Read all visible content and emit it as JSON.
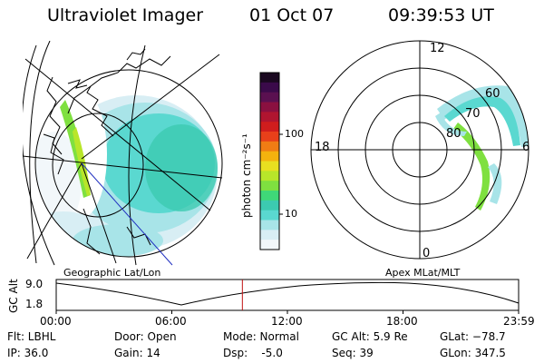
{
  "header": {
    "title": "Ultraviolet Imager",
    "date": "01 Oct 07",
    "time": "09:39:53 UT"
  },
  "colorbar": {
    "unit_label": "photon cm⁻²s⁻¹",
    "ticks": [
      "100",
      "10"
    ],
    "colors": [
      "#1a0820",
      "#3a0a4a",
      "#5a1050",
      "#8a1040",
      "#b01530",
      "#d01d1d",
      "#e8401a",
      "#f07c14",
      "#f4b20e",
      "#e8e020",
      "#b8e62a",
      "#7fe040",
      "#3fd878",
      "#3ccab0",
      "#5ad8d0",
      "#a8e4e8",
      "#d8eef4",
      "#f2f7fa"
    ]
  },
  "geo_panel": {
    "label": "Geographic Lat/Lon"
  },
  "apex_panel": {
    "label": "Apex  MLat/MLT",
    "mlt_labels": {
      "top": "12",
      "left": "18",
      "right": "6",
      "bottom": "0"
    },
    "lat_labels": [
      "60",
      "70",
      "80"
    ]
  },
  "timeline": {
    "ylabel": "GC Alt",
    "yticks": [
      "9.0",
      "1.8"
    ],
    "xticks": [
      "00:00",
      "06:00",
      "12:00",
      "18:00",
      "23:59"
    ],
    "current_time_frac": 0.4026
  },
  "info": {
    "flt": "Flt: LBHL",
    "ip": "IP: 36.0",
    "door": "Door: Open",
    "gain": "Gain: 14",
    "mode": "Mode: Normal",
    "dsp": "Dsp:    -5.0",
    "gcalt": "GC Alt: 5.9 Re",
    "seq": "Seq: 39",
    "glat": "GLat: −78.7",
    "glon": "GLon: 347.5"
  },
  "colors": {
    "aurora_light": "#a8e4e8",
    "aurora_mid": "#5ad8d0",
    "aurora_green": "#7fe040",
    "orbit_marker": "#c01010",
    "sun_line": "#2030c0"
  }
}
